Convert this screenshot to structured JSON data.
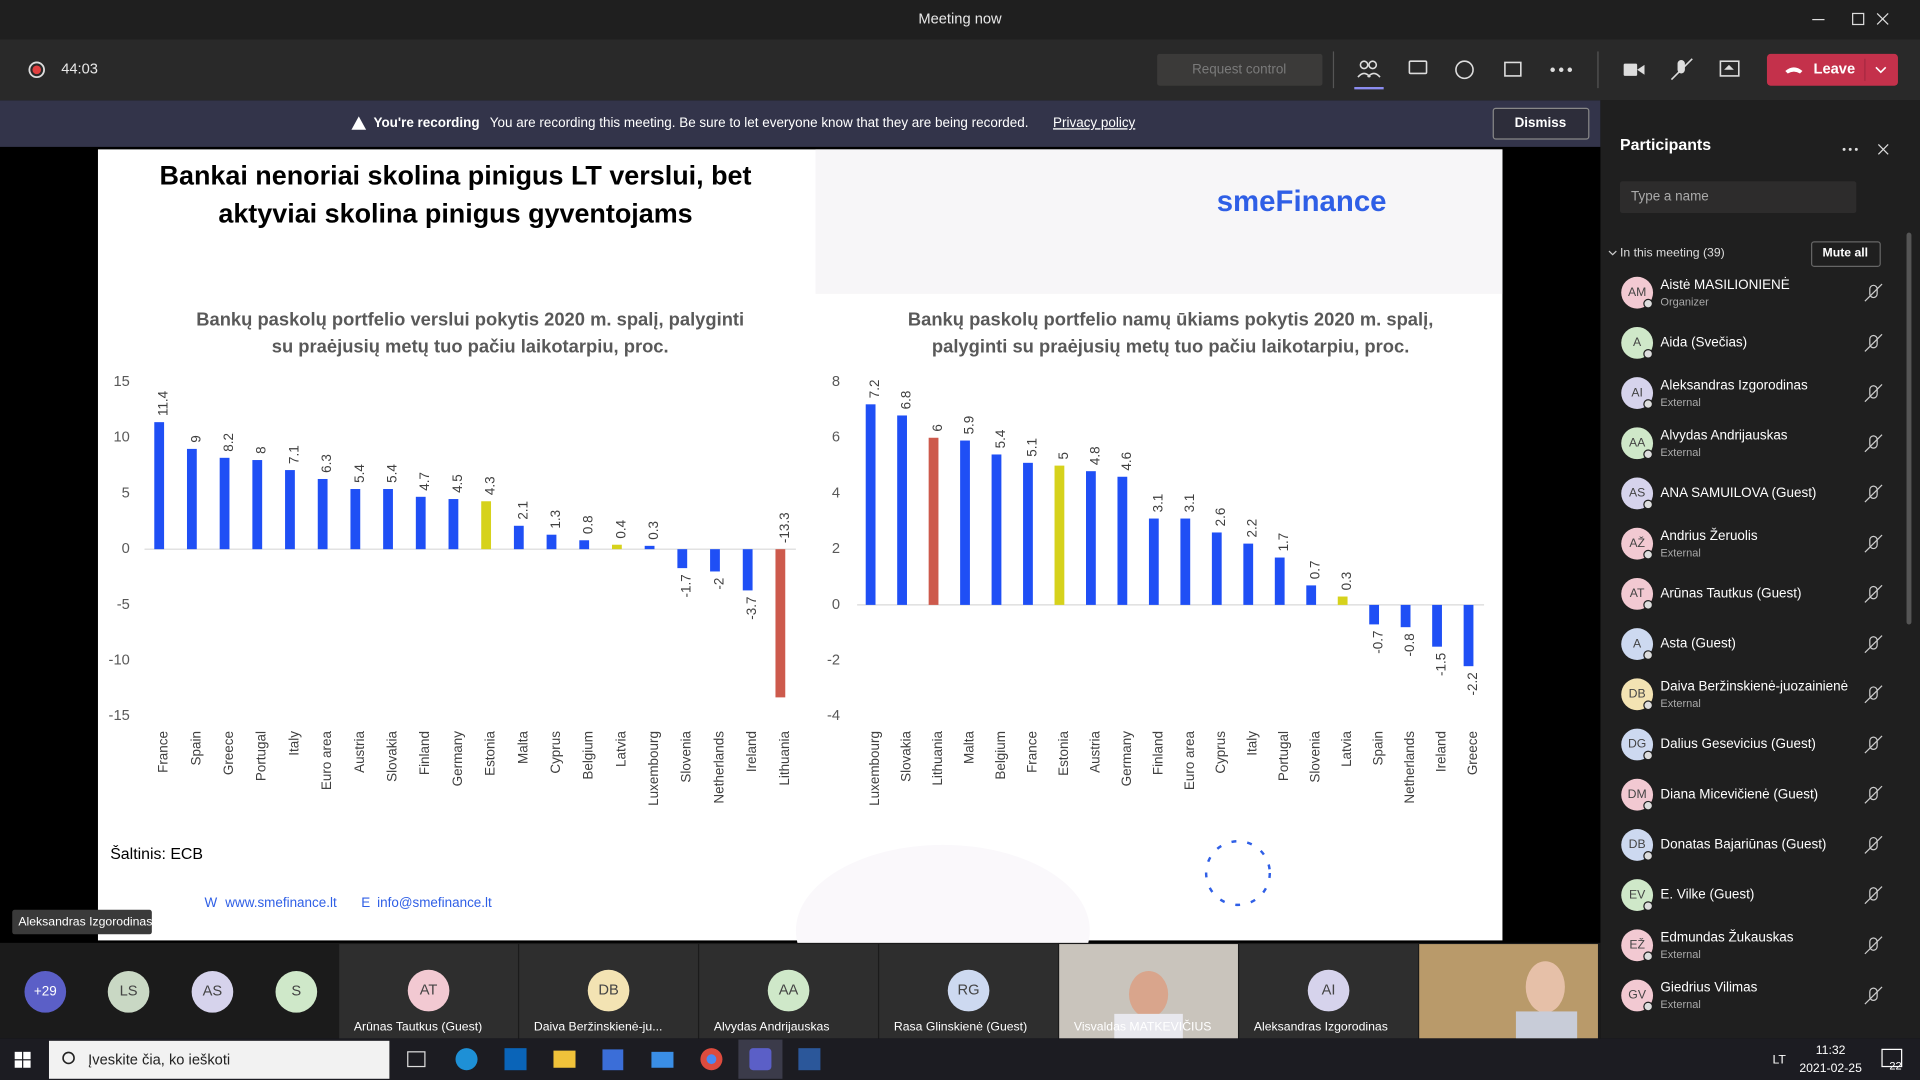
{
  "window": {
    "title": "Meeting now"
  },
  "toolbar": {
    "timer": "44:03",
    "request_control": "Request control",
    "leave": "Leave"
  },
  "banner": {
    "label": "You're recording",
    "message": "You are recording this meeting. Be sure to let everyone know that they are being recorded.",
    "link": "Privacy policy",
    "dismiss": "Dismiss"
  },
  "slide": {
    "title": [
      "Bankai nenoriai skolina pinigus LT verslui, bet",
      "aktyviai skolina pinigus gyventojams"
    ],
    "logo": "smeFinance",
    "source": "Šaltinis: ECB",
    "web_label": "W",
    "web": "www.smefinance.lt",
    "email_label": "E",
    "email": "info@smefinance.lt",
    "presenter": "Aleksandras Izgorodinas"
  },
  "chart_data": [
    {
      "type": "bar",
      "title": [
        "Bankų paskolų portfelio verslui pokytis 2020 m. spalį, palyginti",
        "su praėjusių metų tuo pačiu laikotarpiu, proc."
      ],
      "categories": [
        "France",
        "Spain",
        "Greece",
        "Portugal",
        "Italy",
        "Euro area",
        "Austria",
        "Slovakia",
        "Finland",
        "Germany",
        "Estonia",
        "Malta",
        "Cyprus",
        "Belgium",
        "Latvia",
        "Luxembourg",
        "Slovenia",
        "Netherlands",
        "Ireland",
        "Lithuania"
      ],
      "values": [
        11.4,
        9,
        8.2,
        8,
        7.1,
        6.3,
        5.4,
        5.4,
        4.7,
        4.5,
        4.3,
        2.1,
        1.3,
        0.8,
        0.4,
        0.3,
        -1.7,
        -2,
        -3.7,
        -13.3
      ],
      "colors": [
        "#1f4ff5",
        "#1f4ff5",
        "#1f4ff5",
        "#1f4ff5",
        "#1f4ff5",
        "#1f4ff5",
        "#1f4ff5",
        "#1f4ff5",
        "#1f4ff5",
        "#1f4ff5",
        "#d6d21c",
        "#1f4ff5",
        "#1f4ff5",
        "#1f4ff5",
        "#d6d21c",
        "#1f4ff5",
        "#1f4ff5",
        "#1f4ff5",
        "#1f4ff5",
        "#cd5a4c"
      ],
      "ylim": [
        -15,
        15
      ],
      "yticks": [
        -15,
        -10,
        -5,
        0,
        5,
        10,
        15
      ]
    },
    {
      "type": "bar",
      "title": [
        "Bankų paskolų portfelio namų ūkiams pokytis 2020 m. spalį,",
        "palyginti su praėjusių metų tuo pačiu laikotarpiu, proc."
      ],
      "categories": [
        "Luxembourg",
        "Slovakia",
        "Lithuania",
        "Malta",
        "Belgium",
        "France",
        "Estonia",
        "Austria",
        "Germany",
        "Finland",
        "Euro area",
        "Cyprus",
        "Italy",
        "Portugal",
        "Slovenia",
        "Latvia",
        "Spain",
        "Netherlands",
        "Ireland",
        "Greece"
      ],
      "values": [
        7.2,
        6.8,
        6,
        5.9,
        5.4,
        5.1,
        5,
        4.8,
        4.6,
        3.1,
        3.1,
        2.6,
        2.2,
        1.7,
        0.7,
        0.3,
        -0.7,
        -0.8,
        -1.5,
        -2.2
      ],
      "colors": [
        "#1f4ff5",
        "#1f4ff5",
        "#cd5a4c",
        "#1f4ff5",
        "#1f4ff5",
        "#1f4ff5",
        "#d6d21c",
        "#1f4ff5",
        "#1f4ff5",
        "#1f4ff5",
        "#1f4ff5",
        "#1f4ff5",
        "#1f4ff5",
        "#1f4ff5",
        "#1f4ff5",
        "#d6d21c",
        "#1f4ff5",
        "#1f4ff5",
        "#1f4ff5",
        "#1f4ff5"
      ],
      "ylim": [
        -4,
        8
      ],
      "yticks": [
        -4,
        -2,
        0,
        2,
        4,
        6,
        8
      ]
    }
  ],
  "participants": {
    "title": "Participants",
    "search_placeholder": "Type a name",
    "section": "In this meeting (39)",
    "mute_all": "Mute all",
    "people": [
      {
        "initials": "AM",
        "name": "Aistė MASILIONIENĖ",
        "role": "Organizer",
        "color": "#f2c9d2"
      },
      {
        "initials": "A",
        "name": "Aida (Svečias)",
        "color": "#cfe8c9"
      },
      {
        "initials": "AI",
        "name": "Aleksandras Izgorodinas",
        "role": "External",
        "color": "#d6d3ec"
      },
      {
        "initials": "AA",
        "name": "Alvydas Andrijauskas",
        "role": "External",
        "color": "#cfe8c9"
      },
      {
        "initials": "AS",
        "name": "ANA SAMUILOVA (Guest)",
        "color": "#d6d3ec"
      },
      {
        "initials": "AŽ",
        "name": "Andrius Žeruolis",
        "role": "External",
        "color": "#f2c9d2"
      },
      {
        "initials": "AT",
        "name": "Arūnas Tautkus (Guest)",
        "color": "#f2c9d2"
      },
      {
        "initials": "A",
        "name": "Asta (Guest)",
        "color": "#cdd9f0"
      },
      {
        "initials": "DB",
        "name": "Daiva Beržinskienė-juozainienė",
        "role": "External",
        "color": "#f3e3b3"
      },
      {
        "initials": "DG",
        "name": "Dalius Gesevicius (Guest)",
        "color": "#cdd9f0"
      },
      {
        "initials": "DM",
        "name": "Diana Micevičienė (Guest)",
        "color": "#f2c9d2"
      },
      {
        "initials": "DB",
        "name": "Donatas Bajariūnas (Guest)",
        "color": "#cdd9f0"
      },
      {
        "initials": "EV",
        "name": "E. Vilke (Guest)",
        "color": "#cfe8c9"
      },
      {
        "initials": "EŽ",
        "name": "Edmundas Žukauskas",
        "role": "External",
        "color": "#f2c9d2"
      },
      {
        "initials": "GV",
        "name": "Giedrius Vilimas",
        "role": "External",
        "color": "#f2c9d2"
      }
    ]
  },
  "stage": {
    "overflow": "+29",
    "avatars": [
      "LS",
      "AS",
      "S"
    ],
    "tiles": [
      {
        "initials": "AT",
        "name": "Arūnas Tautkus (Guest)"
      },
      {
        "initials": "DB",
        "name": "Daiva Beržinskienė-ju..."
      },
      {
        "initials": "AA",
        "name": "Alvydas Andrijauskas"
      },
      {
        "initials": "RG",
        "name": "Rasa Glinskienė (Guest)"
      },
      {
        "name": "Visvaldas MATKEVIČIUS"
      },
      {
        "initials": "AI",
        "name": "Aleksandras Izgorodinas"
      }
    ]
  },
  "taskbar": {
    "search": "Įveskite čia, ko ieškoti",
    "lang": "LT",
    "time": "11:32",
    "date": "2021-02-25",
    "notifications": "22"
  }
}
